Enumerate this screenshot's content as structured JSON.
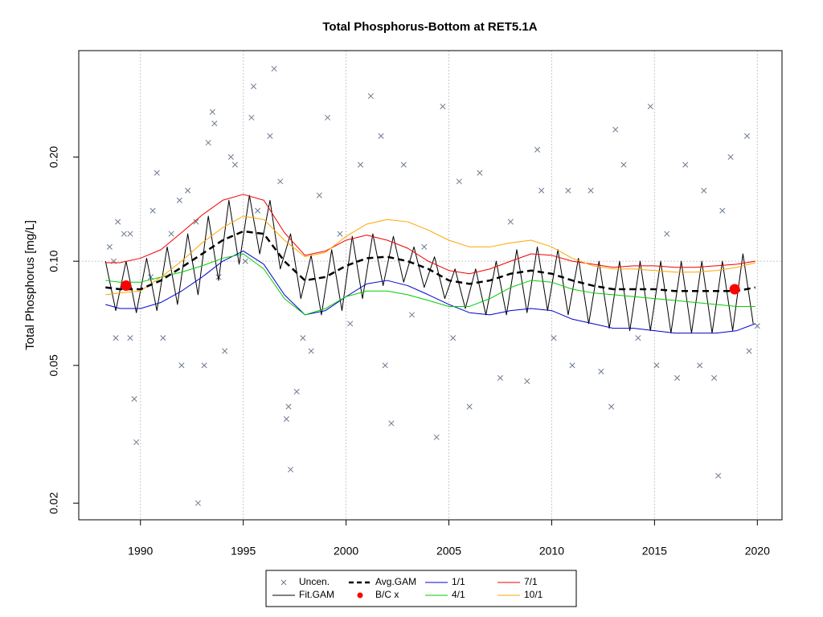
{
  "chart_data": {
    "type": "line",
    "title": "Total Phosphorus-Bottom at RET5.1A",
    "y_label": "Total Phosphorus [mg/L]",
    "log_y": true,
    "grid": true,
    "reference_line": 0.1,
    "xlim": [
      1987.0,
      2021.2
    ],
    "ylim": [
      0.0179,
      0.406
    ],
    "xticks": [
      1990,
      1995,
      2000,
      2005,
      2010,
      2015,
      2020
    ],
    "yticks": [
      0.02,
      0.05,
      {
        "value": 0.1,
        "label": "0.10"
      },
      {
        "value": 0.2,
        "label": "0.20"
      }
    ],
    "legend": "bottom",
    "series": [
      {
        "name": "Uncen.",
        "style": "cross",
        "color": "#6b7b8e",
        "x": [
          1988.5,
          1988.7,
          1988.9,
          1989.2,
          1988.8,
          1989.5,
          1989.7,
          1989.8,
          1989.5,
          1990.5,
          1990.6,
          1990.8,
          1991.1,
          1991.5,
          1991.9,
          1992.0,
          1992.3,
          1992.7,
          1992.8,
          1993.1,
          1993.3,
          1993.5,
          1993.6,
          1993.8,
          1994.1,
          1994.4,
          1994.6,
          1995.1,
          1995.4,
          1995.5,
          1995.7,
          1996.3,
          1996.5,
          1996.8,
          1997.1,
          1997.2,
          1997.3,
          1997.6,
          1997.9,
          1998.3,
          1998.7,
          1999.1,
          1999.7,
          2000.2,
          2000.7,
          2001.2,
          2001.7,
          2001.9,
          2002.2,
          2002.8,
          2003.2,
          2003.8,
          2004.4,
          2004.7,
          2005.2,
          2005.5,
          2006.0,
          2006.5,
          2007.5,
          2008.0,
          2008.8,
          2009.3,
          2009.5,
          2010.1,
          2010.8,
          2011.0,
          2011.9,
          2012.4,
          2012.9,
          2013.1,
          2013.5,
          2014.2,
          2014.8,
          2015.1,
          2015.6,
          2016.1,
          2016.5,
          2017.2,
          2017.4,
          2017.9,
          2018.1,
          2018.7,
          2019.5,
          2019.6,
          2020.0,
          2018.3
        ],
        "values": [
          0.11,
          0.1,
          0.13,
          0.12,
          0.06,
          0.06,
          0.04,
          0.03,
          0.12,
          0.09,
          0.14,
          0.18,
          0.06,
          0.12,
          0.15,
          0.05,
          0.16,
          0.13,
          0.02,
          0.05,
          0.22,
          0.27,
          0.25,
          0.09,
          0.055,
          0.2,
          0.19,
          0.1,
          0.26,
          0.32,
          0.14,
          0.23,
          0.36,
          0.17,
          0.035,
          0.038,
          0.025,
          0.042,
          0.06,
          0.055,
          0.155,
          0.26,
          0.12,
          0.066,
          0.19,
          0.3,
          0.23,
          0.05,
          0.034,
          0.19,
          0.07,
          0.11,
          0.031,
          0.28,
          0.06,
          0.17,
          0.038,
          0.18,
          0.046,
          0.13,
          0.045,
          0.21,
          0.16,
          0.06,
          0.16,
          0.05,
          0.16,
          0.048,
          0.038,
          0.24,
          0.19,
          0.06,
          0.28,
          0.05,
          0.12,
          0.046,
          0.19,
          0.05,
          0.16,
          0.046,
          0.024,
          0.2,
          0.23,
          0.055,
          0.065,
          0.14
        ]
      },
      {
        "name": "Fit.GAM",
        "style": "line",
        "color": "#000000",
        "x": [
          1988.3,
          1988.8,
          1989.3,
          1989.8,
          1990.3,
          1990.8,
          1991.3,
          1991.8,
          1992.3,
          1992.8,
          1993.3,
          1993.8,
          1994.3,
          1994.8,
          1995.3,
          1995.8,
          1996.3,
          1996.8,
          1997.3,
          1997.8,
          1998.3,
          1998.8,
          1999.3,
          1999.8,
          2000.3,
          2000.8,
          2001.3,
          2001.8,
          2002.3,
          2002.8,
          2003.3,
          2003.8,
          2004.3,
          2004.8,
          2005.3,
          2005.8,
          2006.3,
          2006.8,
          2007.3,
          2007.8,
          2008.3,
          2008.8,
          2009.3,
          2009.8,
          2010.3,
          2010.8,
          2011.3,
          2011.8,
          2012.3,
          2012.8,
          2013.3,
          2013.8,
          2014.3,
          2014.8,
          2015.3,
          2015.8,
          2016.3,
          2016.8,
          2017.3,
          2017.8,
          2018.3,
          2018.8,
          2019.3,
          2019.8
        ],
        "values": [
          0.1,
          0.072,
          0.1,
          0.071,
          0.102,
          0.072,
          0.11,
          0.075,
          0.12,
          0.08,
          0.135,
          0.088,
          0.15,
          0.098,
          0.155,
          0.105,
          0.15,
          0.095,
          0.12,
          0.078,
          0.104,
          0.07,
          0.108,
          0.072,
          0.118,
          0.078,
          0.12,
          0.085,
          0.118,
          0.087,
          0.11,
          0.084,
          0.103,
          0.078,
          0.095,
          0.073,
          0.095,
          0.07,
          0.1,
          0.07,
          0.108,
          0.071,
          0.11,
          0.072,
          0.108,
          0.07,
          0.102,
          0.066,
          0.1,
          0.064,
          0.1,
          0.063,
          0.1,
          0.063,
          0.1,
          0.062,
          0.1,
          0.062,
          0.1,
          0.062,
          0.1,
          0.063,
          0.105,
          0.066
        ]
      },
      {
        "name": "Avg.GAM",
        "style": "dashed",
        "color": "#000000",
        "x": [
          1988.3,
          1989,
          1990,
          1991,
          1992,
          1993,
          1994,
          1995,
          1996,
          1997,
          1998,
          1999,
          2000,
          2001,
          2002,
          2003,
          2004,
          2005,
          2006,
          2007,
          2008,
          2009,
          2010,
          2011,
          2012,
          2013,
          2014,
          2015,
          2016,
          2017,
          2018,
          2019,
          2019.9
        ],
        "values": [
          0.084,
          0.083,
          0.083,
          0.088,
          0.096,
          0.105,
          0.115,
          0.122,
          0.12,
          0.1,
          0.088,
          0.09,
          0.097,
          0.102,
          0.103,
          0.1,
          0.095,
          0.088,
          0.086,
          0.088,
          0.092,
          0.094,
          0.092,
          0.088,
          0.085,
          0.083,
          0.083,
          0.083,
          0.082,
          0.082,
          0.082,
          0.082,
          0.084
        ]
      },
      {
        "name": "B/C x",
        "style": "dot",
        "color": "#ff0000",
        "x": [
          1989.3,
          2018.9
        ],
        "values": [
          0.085,
          0.083
        ]
      },
      {
        "name": "1/1",
        "style": "line",
        "color": "#0000cd",
        "x": [
          1988.3,
          1989,
          1990,
          1991,
          1992,
          1993,
          1994,
          1995,
          1996,
          1997,
          1998,
          1999,
          2000,
          2001,
          2002,
          2003,
          2004,
          2005,
          2006,
          2007,
          2008,
          2009,
          2010,
          2011,
          2012,
          2013,
          2014,
          2015,
          2016,
          2017,
          2018,
          2019,
          2019.9
        ],
        "values": [
          0.075,
          0.073,
          0.073,
          0.076,
          0.082,
          0.09,
          0.1,
          0.107,
          0.098,
          0.08,
          0.07,
          0.072,
          0.079,
          0.086,
          0.088,
          0.085,
          0.08,
          0.075,
          0.071,
          0.07,
          0.072,
          0.073,
          0.072,
          0.068,
          0.066,
          0.064,
          0.064,
          0.063,
          0.062,
          0.062,
          0.062,
          0.063,
          0.066
        ]
      },
      {
        "name": "4/1",
        "style": "line",
        "color": "#00cd00",
        "x": [
          1988.3,
          1989,
          1990,
          1991,
          1992,
          1993,
          1994,
          1995,
          1996,
          1997,
          1998,
          1999,
          2000,
          2001,
          2002,
          2003,
          2004,
          2005,
          2006,
          2007,
          2008,
          2009,
          2010,
          2011,
          2012,
          2013,
          2014,
          2015,
          2016,
          2017,
          2018,
          2019,
          2019.9
        ],
        "values": [
          0.088,
          0.087,
          0.087,
          0.09,
          0.093,
          0.097,
          0.102,
          0.105,
          0.095,
          0.078,
          0.07,
          0.073,
          0.079,
          0.082,
          0.082,
          0.08,
          0.077,
          0.074,
          0.074,
          0.078,
          0.084,
          0.088,
          0.087,
          0.083,
          0.081,
          0.08,
          0.079,
          0.078,
          0.077,
          0.076,
          0.075,
          0.074,
          0.074
        ]
      },
      {
        "name": "7/1",
        "style": "line",
        "color": "#ee0000",
        "x": [
          1988.3,
          1989,
          1990,
          1991,
          1992,
          1993,
          1994,
          1995,
          1996,
          1997,
          1998,
          1999,
          2000,
          2001,
          2002,
          2003,
          2004,
          2005,
          2006,
          2007,
          2008,
          2009,
          2010,
          2011,
          2012,
          2013,
          2014,
          2015,
          2016,
          2017,
          2018,
          2019,
          2019.9
        ],
        "values": [
          0.099,
          0.099,
          0.102,
          0.108,
          0.121,
          0.136,
          0.15,
          0.156,
          0.15,
          0.121,
          0.104,
          0.107,
          0.115,
          0.119,
          0.115,
          0.109,
          0.1,
          0.094,
          0.092,
          0.095,
          0.1,
          0.105,
          0.104,
          0.1,
          0.098,
          0.096,
          0.097,
          0.097,
          0.096,
          0.096,
          0.097,
          0.098,
          0.1
        ]
      },
      {
        "name": "10/1",
        "style": "line",
        "color": "#ffa500",
        "x": [
          1988.3,
          1989,
          1990,
          1991,
          1992,
          1993,
          1994,
          1995,
          1996,
          1997,
          1998,
          1999,
          2000,
          2001,
          2002,
          2003,
          2004,
          2005,
          2006,
          2007,
          2008,
          2009,
          2010,
          2011,
          2012,
          2013,
          2014,
          2015,
          2016,
          2017,
          2018,
          2019,
          2019.9
        ],
        "values": [
          0.08,
          0.081,
          0.082,
          0.09,
          0.1,
          0.113,
          0.125,
          0.135,
          0.132,
          0.115,
          0.103,
          0.106,
          0.118,
          0.128,
          0.132,
          0.13,
          0.123,
          0.115,
          0.11,
          0.11,
          0.113,
          0.115,
          0.11,
          0.102,
          0.097,
          0.095,
          0.095,
          0.094,
          0.093,
          0.093,
          0.094,
          0.096,
          0.099
        ]
      }
    ]
  }
}
